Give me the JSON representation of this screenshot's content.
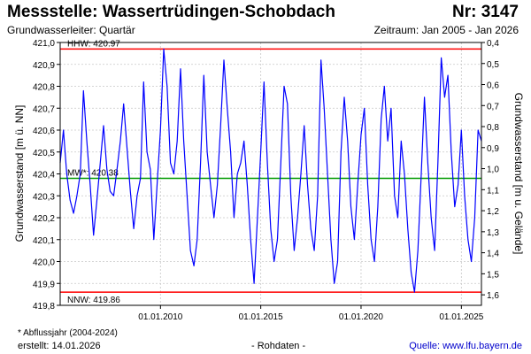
{
  "header": {
    "title": "Messstelle: Wassertrüdingen-Schobdach",
    "nr": "Nr: 3147",
    "aquifer": "Grundwasserleiter: Quartär",
    "period": "Zeitraum: Jan 2005 - Jan 2026"
  },
  "footer": {
    "footnote": "* Abflussjahr (2004-2024)",
    "created": "erstellt:  14.01.2026",
    "raw": "- Rohdaten -",
    "source": "Quelle: www.lfu.bayern.de"
  },
  "colors": {
    "series": "#0000ff",
    "extreme_lines": "#ff0000",
    "mean_line": "#009900",
    "grid": "#c8c8c8"
  },
  "chart_data": {
    "type": "line",
    "left_axis": {
      "label": "Grundwasserstand [m ü. NN]",
      "range": [
        419.8,
        421.0
      ],
      "ticks": [
        "419,8",
        "419,9",
        "420,0",
        "420,1",
        "420,2",
        "420,3",
        "420,4",
        "420,5",
        "420,6",
        "420,7",
        "420,8",
        "420,9",
        "421,0"
      ]
    },
    "right_axis": {
      "label": "Grundwasserstand [m u. Gelände]",
      "range": [
        1.65,
        0.4
      ],
      "ticks": [
        "0,4",
        "0,5",
        "0,6",
        "0,7",
        "0,8",
        "0,9",
        "1,0",
        "1,1",
        "1,2",
        "1,3",
        "1,4",
        "1,5",
        "1,6"
      ]
    },
    "x_axis": {
      "range": [
        "2005-01-01",
        "2026-01-01"
      ],
      "ticks": [
        {
          "date": "2010-01-01",
          "label": "01.01.2010"
        },
        {
          "date": "2015-01-01",
          "label": "01.01.2015"
        },
        {
          "date": "2020-01-01",
          "label": "01.01.2020"
        },
        {
          "date": "2025-01-01",
          "label": "01.01.2025"
        }
      ]
    },
    "grid": true,
    "reference_lines": [
      {
        "name": "HHW",
        "label": "HHW: 420.97",
        "value": 420.97
      },
      {
        "name": "MW",
        "label": "MW*: 420.38",
        "value": 420.38
      },
      {
        "name": "NNW",
        "label": "NNW: 419.86",
        "value": 419.86
      }
    ],
    "series": [
      {
        "values": [
          [
            "2005-01-01",
            420.45
          ],
          [
            "2005-03-01",
            420.6
          ],
          [
            "2005-05-01",
            420.4
          ],
          [
            "2005-07-01",
            420.28
          ],
          [
            "2005-09-01",
            420.22
          ],
          [
            "2005-11-01",
            420.3
          ],
          [
            "2006-01-01",
            420.4
          ],
          [
            "2006-03-01",
            420.78
          ],
          [
            "2006-05-01",
            420.55
          ],
          [
            "2006-07-01",
            420.35
          ],
          [
            "2006-09-01",
            420.12
          ],
          [
            "2006-11-01",
            420.28
          ],
          [
            "2007-01-01",
            420.45
          ],
          [
            "2007-03-01",
            420.62
          ],
          [
            "2007-05-01",
            420.42
          ],
          [
            "2007-07-01",
            420.32
          ],
          [
            "2007-09-01",
            420.3
          ],
          [
            "2007-11-01",
            420.42
          ],
          [
            "2008-01-01",
            420.55
          ],
          [
            "2008-03-01",
            420.72
          ],
          [
            "2008-05-01",
            420.52
          ],
          [
            "2008-07-01",
            420.32
          ],
          [
            "2008-09-01",
            420.15
          ],
          [
            "2008-11-01",
            420.3
          ],
          [
            "2009-01-01",
            420.38
          ],
          [
            "2009-03-01",
            420.82
          ],
          [
            "2009-05-01",
            420.5
          ],
          [
            "2009-07-01",
            420.42
          ],
          [
            "2009-09-01",
            420.1
          ],
          [
            "2009-11-01",
            420.35
          ],
          [
            "2010-01-01",
            420.6
          ],
          [
            "2010-03-01",
            420.97
          ],
          [
            "2010-05-01",
            420.8
          ],
          [
            "2010-07-01",
            420.45
          ],
          [
            "2010-09-01",
            420.4
          ],
          [
            "2010-11-01",
            420.55
          ],
          [
            "2011-01-01",
            420.88
          ],
          [
            "2011-03-01",
            420.55
          ],
          [
            "2011-05-01",
            420.3
          ],
          [
            "2011-07-01",
            420.05
          ],
          [
            "2011-09-01",
            419.98
          ],
          [
            "2011-11-01",
            420.1
          ],
          [
            "2012-01-01",
            420.45
          ],
          [
            "2012-03-01",
            420.85
          ],
          [
            "2012-05-01",
            420.5
          ],
          [
            "2012-07-01",
            420.35
          ],
          [
            "2012-09-01",
            420.2
          ],
          [
            "2012-11-01",
            420.35
          ],
          [
            "2013-01-01",
            420.62
          ],
          [
            "2013-03-01",
            420.92
          ],
          [
            "2013-05-01",
            420.7
          ],
          [
            "2013-07-01",
            420.5
          ],
          [
            "2013-09-01",
            420.2
          ],
          [
            "2013-11-01",
            420.4
          ],
          [
            "2014-01-01",
            420.45
          ],
          [
            "2014-03-01",
            420.55
          ],
          [
            "2014-05-01",
            420.35
          ],
          [
            "2014-07-01",
            420.1
          ],
          [
            "2014-09-01",
            419.9
          ],
          [
            "2014-11-01",
            420.2
          ],
          [
            "2015-01-01",
            420.5
          ],
          [
            "2015-03-01",
            420.82
          ],
          [
            "2015-05-01",
            420.45
          ],
          [
            "2015-07-01",
            420.15
          ],
          [
            "2015-09-01",
            420.0
          ],
          [
            "2015-11-01",
            420.1
          ],
          [
            "2016-01-01",
            420.45
          ],
          [
            "2016-03-01",
            420.8
          ],
          [
            "2016-05-01",
            420.72
          ],
          [
            "2016-07-01",
            420.3
          ],
          [
            "2016-09-01",
            420.05
          ],
          [
            "2016-11-01",
            420.2
          ],
          [
            "2017-01-01",
            420.4
          ],
          [
            "2017-03-01",
            420.62
          ],
          [
            "2017-05-01",
            420.35
          ],
          [
            "2017-07-01",
            420.15
          ],
          [
            "2017-09-01",
            420.05
          ],
          [
            "2017-11-01",
            420.3
          ],
          [
            "2018-01-01",
            420.92
          ],
          [
            "2018-03-01",
            420.7
          ],
          [
            "2018-05-01",
            420.4
          ],
          [
            "2018-07-01",
            420.1
          ],
          [
            "2018-09-01",
            419.9
          ],
          [
            "2018-11-01",
            420.0
          ],
          [
            "2019-01-01",
            420.5
          ],
          [
            "2019-03-01",
            420.75
          ],
          [
            "2019-05-01",
            420.55
          ],
          [
            "2019-07-01",
            420.25
          ],
          [
            "2019-09-01",
            420.1
          ],
          [
            "2019-11-01",
            420.35
          ],
          [
            "2020-01-01",
            420.58
          ],
          [
            "2020-03-01",
            420.7
          ],
          [
            "2020-05-01",
            420.35
          ],
          [
            "2020-07-01",
            420.1
          ],
          [
            "2020-09-01",
            420.0
          ],
          [
            "2020-11-01",
            420.25
          ],
          [
            "2021-01-01",
            420.65
          ],
          [
            "2021-03-01",
            420.8
          ],
          [
            "2021-05-01",
            420.55
          ],
          [
            "2021-07-01",
            420.7
          ],
          [
            "2021-09-01",
            420.3
          ],
          [
            "2021-11-01",
            420.2
          ],
          [
            "2022-01-01",
            420.55
          ],
          [
            "2022-03-01",
            420.4
          ],
          [
            "2022-05-01",
            420.15
          ],
          [
            "2022-07-01",
            419.95
          ],
          [
            "2022-09-01",
            419.86
          ],
          [
            "2022-11-01",
            420.05
          ],
          [
            "2023-01-01",
            420.4
          ],
          [
            "2023-03-01",
            420.75
          ],
          [
            "2023-05-01",
            420.45
          ],
          [
            "2023-07-01",
            420.2
          ],
          [
            "2023-09-01",
            420.05
          ],
          [
            "2023-11-01",
            420.45
          ],
          [
            "2024-01-01",
            420.93
          ],
          [
            "2024-03-01",
            420.75
          ],
          [
            "2024-05-01",
            420.85
          ],
          [
            "2024-07-01",
            420.5
          ],
          [
            "2024-09-01",
            420.25
          ],
          [
            "2024-11-01",
            420.35
          ],
          [
            "2025-01-01",
            420.6
          ],
          [
            "2025-03-01",
            420.3
          ],
          [
            "2025-05-01",
            420.1
          ],
          [
            "2025-07-01",
            420.0
          ],
          [
            "2025-09-01",
            420.2
          ],
          [
            "2025-11-01",
            420.6
          ],
          [
            "2026-01-01",
            420.55
          ]
        ]
      }
    ]
  }
}
